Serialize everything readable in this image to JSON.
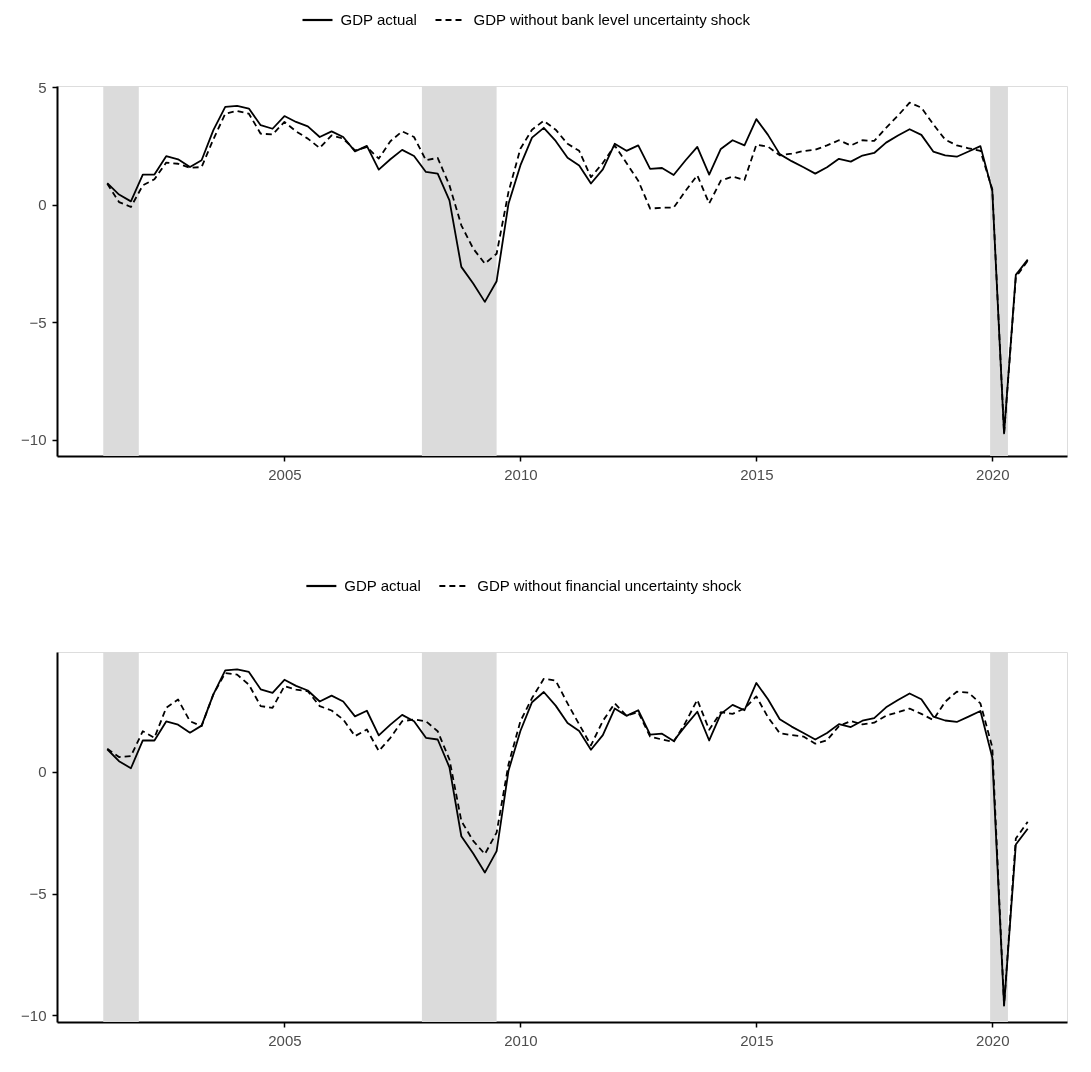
{
  "chart_data": [
    {
      "type": "line",
      "legend": "top",
      "grid": false,
      "x": [
        "2001-04",
        "2001-07",
        "2001-10",
        "2002-01",
        "2002-04",
        "2002-07",
        "2002-10",
        "2003-01",
        "2003-04",
        "2003-07",
        "2003-10",
        "2004-01",
        "2004-04",
        "2004-07",
        "2004-10",
        "2005-01",
        "2005-04",
        "2005-07",
        "2005-10",
        "2006-01",
        "2006-04",
        "2006-07",
        "2006-10",
        "2007-01",
        "2007-04",
        "2007-07",
        "2007-10",
        "2008-01",
        "2008-04",
        "2008-07",
        "2008-10",
        "2009-01",
        "2009-04",
        "2009-07",
        "2009-10",
        "2010-01",
        "2010-04",
        "2010-07",
        "2010-10",
        "2011-01",
        "2011-04",
        "2011-07",
        "2011-10",
        "2012-01",
        "2012-04",
        "2012-07",
        "2012-10",
        "2013-01",
        "2013-04",
        "2013-07",
        "2013-10",
        "2014-01",
        "2014-04",
        "2014-07",
        "2014-10",
        "2015-01",
        "2015-04",
        "2015-07",
        "2015-10",
        "2016-01",
        "2016-04",
        "2016-07",
        "2016-10",
        "2017-01",
        "2017-04",
        "2017-07",
        "2017-10",
        "2018-01",
        "2018-04",
        "2018-07",
        "2018-10",
        "2019-01",
        "2019-04",
        "2019-07",
        "2019-10",
        "2020-01",
        "2020-04",
        "2020-07",
        "2020-10"
      ],
      "series": [
        {
          "name": "GDP actual",
          "color": "#000000",
          "line_style": "solid",
          "values": [
            0.92,
            0.43,
            0.14,
            1.28,
            1.28,
            2.06,
            1.93,
            1.6,
            1.89,
            3.17,
            4.16,
            4.2,
            4.09,
            3.38,
            3.23,
            3.77,
            3.52,
            3.33,
            2.88,
            3.12,
            2.88,
            2.27,
            2.5,
            1.49,
            1.93,
            2.33,
            2.07,
            1.39,
            1.32,
            0.18,
            -2.65,
            -3.36,
            -4.14,
            -3.26,
            0.04,
            1.67,
            2.85,
            3.27,
            2.71,
            2.0,
            1.67,
            0.9,
            1.5,
            2.59,
            2.29,
            2.52,
            1.52,
            1.56,
            1.26,
            1.88,
            2.46,
            1.28,
            2.37,
            2.74,
            2.52,
            3.64,
            2.97,
            2.15,
            1.85,
            1.59,
            1.32,
            1.59,
            1.95,
            1.83,
            2.09,
            2.2,
            2.64,
            2.94,
            3.21,
            2.97,
            2.26,
            2.1,
            2.04,
            2.26,
            2.49,
            0.58,
            -9.74,
            -2.99,
            -2.34
          ]
        },
        {
          "name": "GDP without bank level uncertainty shock",
          "color": "#000000",
          "line_style": "dashed",
          "values": [
            0.89,
            0.11,
            -0.1,
            0.82,
            1.08,
            1.79,
            1.74,
            1.57,
            1.6,
            2.78,
            3.87,
            3.99,
            3.87,
            3.02,
            2.99,
            3.52,
            3.12,
            2.81,
            2.41,
            2.95,
            2.81,
            2.31,
            2.45,
            1.96,
            2.7,
            3.12,
            2.88,
            1.89,
            1.99,
            0.82,
            -0.88,
            -1.87,
            -2.51,
            -2.09,
            0.54,
            2.38,
            3.19,
            3.57,
            3.19,
            2.59,
            2.29,
            1.17,
            1.77,
            2.52,
            1.77,
            1.02,
            -0.17,
            -0.13,
            -0.13,
            0.58,
            1.25,
            0.05,
            1.02,
            1.2,
            1.05,
            2.55,
            2.47,
            2.1,
            2.17,
            2.28,
            2.34,
            2.52,
            2.74,
            2.52,
            2.74,
            2.71,
            3.27,
            3.79,
            4.34,
            4.13,
            3.42,
            2.77,
            2.52,
            2.4,
            2.29,
            0.65,
            -9.74,
            -3.09,
            -2.39
          ]
        }
      ],
      "xlim": [
        "2000-03-08",
        "2021-08-01"
      ],
      "xticks": [
        "2005",
        "2010",
        "2015",
        "2020"
      ],
      "ylim": [
        -10.7,
        5.05
      ],
      "yticks": [
        -10,
        -5,
        0,
        5
      ],
      "bands": [
        {
          "axis": "x",
          "from": "2001-03-01",
          "to": "2001-12-01",
          "color": "#dbdbdb"
        },
        {
          "axis": "x",
          "from": "2007-12-01",
          "to": "2009-07-01",
          "color": "#dbdbdb"
        },
        {
          "axis": "x",
          "from": "2019-12-15",
          "to": "2020-05-01",
          "color": "#dbdbdb"
        }
      ]
    },
    {
      "type": "line",
      "legend": "top",
      "grid": false,
      "x": [
        "2001-04",
        "2001-07",
        "2001-10",
        "2002-01",
        "2002-04",
        "2002-07",
        "2002-10",
        "2003-01",
        "2003-04",
        "2003-07",
        "2003-10",
        "2004-01",
        "2004-04",
        "2004-07",
        "2004-10",
        "2005-01",
        "2005-04",
        "2005-07",
        "2005-10",
        "2006-01",
        "2006-04",
        "2006-07",
        "2006-10",
        "2007-01",
        "2007-04",
        "2007-07",
        "2007-10",
        "2008-01",
        "2008-04",
        "2008-07",
        "2008-10",
        "2009-01",
        "2009-04",
        "2009-07",
        "2009-10",
        "2010-01",
        "2010-04",
        "2010-07",
        "2010-10",
        "2011-01",
        "2011-04",
        "2011-07",
        "2011-10",
        "2012-01",
        "2012-04",
        "2012-07",
        "2012-10",
        "2013-01",
        "2013-04",
        "2013-07",
        "2013-10",
        "2014-01",
        "2014-04",
        "2014-07",
        "2014-10",
        "2015-01",
        "2015-04",
        "2015-07",
        "2015-10",
        "2016-01",
        "2016-04",
        "2016-07",
        "2016-10",
        "2017-01",
        "2017-04",
        "2017-07",
        "2017-10",
        "2018-01",
        "2018-04",
        "2018-07",
        "2018-10",
        "2019-01",
        "2019-04",
        "2019-07",
        "2019-10",
        "2020-01",
        "2020-04",
        "2020-07",
        "2020-10"
      ],
      "series": [
        {
          "name": "GDP actual",
          "color": "#000000",
          "line_style": "solid",
          "values": [
            0.92,
            0.43,
            0.14,
            1.28,
            1.28,
            2.06,
            1.93,
            1.6,
            1.89,
            3.17,
            4.16,
            4.2,
            4.09,
            3.38,
            3.23,
            3.77,
            3.52,
            3.33,
            2.88,
            3.12,
            2.88,
            2.27,
            2.5,
            1.49,
            1.93,
            2.33,
            2.07,
            1.39,
            1.32,
            0.18,
            -2.65,
            -3.36,
            -4.14,
            -3.26,
            0.04,
            1.67,
            2.85,
            3.27,
            2.71,
            2.0,
            1.67,
            0.9,
            1.5,
            2.59,
            2.29,
            2.52,
            1.52,
            1.56,
            1.26,
            1.88,
            2.46,
            1.28,
            2.37,
            2.74,
            2.52,
            3.64,
            2.97,
            2.15,
            1.85,
            1.59,
            1.32,
            1.59,
            1.95,
            1.83,
            2.09,
            2.2,
            2.64,
            2.94,
            3.21,
            2.97,
            2.26,
            2.1,
            2.04,
            2.26,
            2.49,
            0.58,
            -9.6,
            -2.99,
            -2.34
          ]
        },
        {
          "name": "GDP without financial uncertainty shock",
          "color": "#000000",
          "line_style": "dashed",
          "values": [
            0.94,
            0.6,
            0.64,
            1.66,
            1.39,
            2.62,
            2.96,
            2.07,
            1.87,
            3.17,
            4.05,
            3.98,
            3.57,
            2.69,
            2.62,
            3.51,
            3.37,
            3.3,
            2.69,
            2.51,
            2.14,
            1.46,
            1.73,
            0.85,
            1.39,
            2.07,
            2.14,
            2.07,
            1.66,
            0.5,
            -2.02,
            -2.84,
            -3.38,
            -2.5,
            0.3,
            2.07,
            3.02,
            3.81,
            3.74,
            2.8,
            1.94,
            1.08,
            2.08,
            2.8,
            2.3,
            2.44,
            1.44,
            1.32,
            1.22,
            2.01,
            2.95,
            1.72,
            2.44,
            2.37,
            2.59,
            3.09,
            2.23,
            1.58,
            1.5,
            1.44,
            1.15,
            1.29,
            1.87,
            2.08,
            1.94,
            2.01,
            2.3,
            2.44,
            2.59,
            2.37,
            2.12,
            2.87,
            3.28,
            3.24,
            2.8,
            1.0,
            -9.57,
            -2.74,
            -2.06
          ]
        }
      ],
      "xlim": [
        "2000-03-08",
        "2021-08-01"
      ],
      "xticks": [
        "2005",
        "2010",
        "2015",
        "2020"
      ],
      "ylim": [
        -10.27,
        4.91
      ],
      "yticks": [
        -10,
        -5,
        0
      ],
      "bands": [
        {
          "axis": "x",
          "from": "2001-03-01",
          "to": "2001-12-01",
          "color": "#dbdbdb"
        },
        {
          "axis": "x",
          "from": "2007-12-01",
          "to": "2009-07-01",
          "color": "#dbdbdb"
        },
        {
          "axis": "x",
          "from": "2019-12-15",
          "to": "2020-05-01",
          "color": "#dbdbdb"
        }
      ]
    }
  ]
}
